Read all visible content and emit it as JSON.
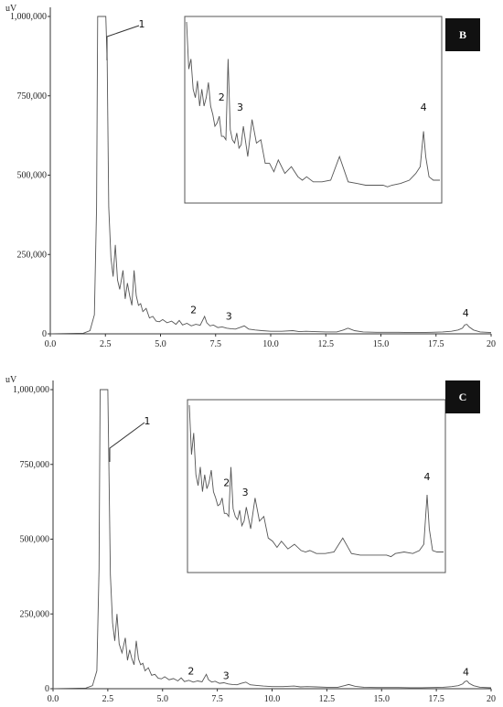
{
  "chart_data": [
    {
      "type": "line",
      "panel_label": "B",
      "ylabel": "uV",
      "xlim": [
        0,
        20
      ],
      "ylim": [
        0,
        1000000
      ],
      "x_ticks": [
        "0.0",
        "2.5",
        "5.0",
        "7.5",
        "10.0",
        "12.5",
        "15.0",
        "17.5",
        "20"
      ],
      "y_ticks": [
        "1,000,000",
        "750,000",
        "500,000",
        "250,000",
        "0"
      ],
      "y_tick_values": [
        1000000,
        750000,
        500000,
        250000,
        0
      ],
      "x_tick_values": [
        0,
        2.5,
        5,
        7.5,
        10,
        12.5,
        15,
        17.5,
        20
      ],
      "line_color": "#555555",
      "peak_labels": [
        {
          "text": "1",
          "x": 2.55,
          "y": 950000
        },
        {
          "text": "2",
          "x": 6.5,
          "y": 65000
        },
        {
          "text": "3",
          "x": 8.1,
          "y": 45000
        },
        {
          "text": "4",
          "x": 18.85,
          "y": 55000
        }
      ],
      "series": [
        {
          "x": [
            0,
            1.5,
            1.8,
            2.0,
            2.1,
            2.15,
            2.2,
            2.3,
            2.35,
            2.45,
            2.52,
            2.58,
            2.65,
            2.75,
            2.85,
            2.95,
            3.05,
            3.15,
            3.3,
            3.4,
            3.5,
            3.6,
            3.7,
            3.8,
            3.9,
            4.0,
            4.1,
            4.2,
            4.35,
            4.5,
            4.65,
            4.8,
            4.95,
            5.1,
            5.3,
            5.5,
            5.7,
            5.85,
            6.0,
            6.2,
            6.4,
            6.6,
            6.8,
            7.0,
            7.1,
            7.25,
            7.4,
            7.6,
            7.8,
            8.0,
            8.2,
            8.4,
            8.6,
            8.8,
            9.0,
            9.3,
            9.6,
            10.0,
            10.5,
            11.0,
            11.3,
            11.6,
            12.0,
            12.5,
            13.0,
            13.3,
            13.5,
            13.8,
            14.2,
            14.8,
            15.3,
            15.8,
            16.3,
            16.8,
            17.3,
            17.8,
            18.2,
            18.5,
            18.7,
            18.8,
            18.9,
            19.0,
            19.2,
            19.5,
            20.0
          ],
          "y": [
            0,
            2000,
            10000,
            60000,
            400000,
            1000000,
            1000000,
            1000000,
            1000000,
            1000000,
            1000000,
            860000,
            400000,
            240000,
            180000,
            280000,
            170000,
            140000,
            200000,
            110000,
            160000,
            120000,
            90000,
            200000,
            120000,
            90000,
            95000,
            70000,
            80000,
            50000,
            55000,
            40000,
            38000,
            45000,
            35000,
            40000,
            30000,
            42000,
            28000,
            33000,
            25000,
            30000,
            27000,
            55000,
            35000,
            25000,
            28000,
            20000,
            22000,
            18000,
            16000,
            15000,
            20000,
            25000,
            15000,
            12000,
            10000,
            8000,
            8000,
            10000,
            7000,
            8000,
            7000,
            6000,
            6000,
            12000,
            18000,
            10000,
            6000,
            5000,
            5000,
            5000,
            4000,
            4000,
            5000,
            6000,
            8000,
            12000,
            18000,
            28000,
            30000,
            22000,
            12000,
            6000,
            4000
          ]
        }
      ],
      "inset": {
        "x": [
          6.0,
          6.1,
          6.2,
          6.3,
          6.4,
          6.5,
          6.6,
          6.7,
          6.8,
          6.9,
          7.0,
          7.1,
          7.2,
          7.3,
          7.4,
          7.5,
          7.6,
          7.7,
          7.8,
          7.9,
          8.0,
          8.1,
          8.2,
          8.3,
          8.4,
          8.5,
          8.6,
          8.8,
          9.0,
          9.2,
          9.4,
          9.6,
          9.8,
          10.0,
          10.2,
          10.5,
          10.8,
          11.1,
          11.3,
          11.5,
          11.8,
          12.2,
          12.6,
          13.0,
          13.4,
          13.8,
          14.2,
          14.6,
          15.0,
          15.2,
          15.4,
          15.8,
          16.2,
          16.5,
          16.7,
          16.85,
          16.95,
          17.1,
          17.3,
          17.6
        ],
        "y": [
          1.0,
          0.72,
          0.78,
          0.6,
          0.55,
          0.65,
          0.5,
          0.6,
          0.5,
          0.55,
          0.64,
          0.5,
          0.45,
          0.38,
          0.4,
          0.44,
          0.32,
          0.32,
          0.3,
          0.78,
          0.36,
          0.3,
          0.28,
          0.34,
          0.25,
          0.27,
          0.38,
          0.2,
          0.42,
          0.28,
          0.3,
          0.16,
          0.16,
          0.11,
          0.18,
          0.1,
          0.14,
          0.08,
          0.06,
          0.08,
          0.05,
          0.05,
          0.06,
          0.2,
          0.05,
          0.04,
          0.03,
          0.03,
          0.03,
          0.02,
          0.03,
          0.04,
          0.06,
          0.1,
          0.14,
          0.35,
          0.2,
          0.08,
          0.06,
          0.06
        ],
        "peak_labels": [
          {
            "text": "2",
            "x": 7.6,
            "y": 0.5
          },
          {
            "text": "3",
            "x": 8.45,
            "y": 0.44
          },
          {
            "text": "4",
            "x": 16.85,
            "y": 0.44
          }
        ]
      }
    },
    {
      "type": "line",
      "panel_label": "C",
      "ylabel": "uV",
      "xlim": [
        0,
        20
      ],
      "ylim": [
        0,
        1000000
      ],
      "x_ticks": [
        "0.0",
        "2.5",
        "5.0",
        "7.5",
        "10.0",
        "12.5",
        "15.0",
        "17.5",
        "20"
      ],
      "y_ticks": [
        "1,000,000",
        "750,000",
        "500,000",
        "250,000",
        "0"
      ],
      "y_tick_values": [
        1000000,
        750000,
        500000,
        250000,
        0
      ],
      "x_tick_values": [
        0,
        2.5,
        5,
        7.5,
        10,
        12.5,
        15,
        17.5,
        20
      ],
      "line_color": "#555555",
      "peak_labels": [
        {
          "text": "1",
          "x": 2.6,
          "y": 780000
        },
        {
          "text": "2",
          "x": 6.3,
          "y": 48000
        },
        {
          "text": "3",
          "x": 7.9,
          "y": 32000
        },
        {
          "text": "4",
          "x": 18.85,
          "y": 45000
        }
      ],
      "series": [
        {
          "x": [
            0,
            1.5,
            1.8,
            2.0,
            2.1,
            2.15,
            2.2,
            2.3,
            2.35,
            2.45,
            2.5,
            2.55,
            2.62,
            2.72,
            2.82,
            2.92,
            3.02,
            3.15,
            3.3,
            3.4,
            3.5,
            3.6,
            3.7,
            3.8,
            3.9,
            4.0,
            4.1,
            4.2,
            4.35,
            4.5,
            4.65,
            4.8,
            4.95,
            5.1,
            5.3,
            5.5,
            5.7,
            5.85,
            6.0,
            6.2,
            6.4,
            6.6,
            6.8,
            7.0,
            7.1,
            7.25,
            7.4,
            7.6,
            7.8,
            8.0,
            8.2,
            8.4,
            8.6,
            8.8,
            9.0,
            9.3,
            9.6,
            10.0,
            10.5,
            11.0,
            11.3,
            11.6,
            12.0,
            12.5,
            13.0,
            13.3,
            13.5,
            13.8,
            14.2,
            14.8,
            15.3,
            15.8,
            16.3,
            16.8,
            17.3,
            17.8,
            18.2,
            18.5,
            18.7,
            18.8,
            18.9,
            19.0,
            19.2,
            19.5,
            20.0
          ],
          "y": [
            0,
            2000,
            10000,
            60000,
            400000,
            1000000,
            1000000,
            1000000,
            1000000,
            1000000,
            1000000,
            740000,
            380000,
            220000,
            160000,
            250000,
            150000,
            120000,
            170000,
            95000,
            130000,
            100000,
            80000,
            160000,
            100000,
            80000,
            85000,
            60000,
            70000,
            45000,
            48000,
            35000,
            33000,
            40000,
            30000,
            34000,
            26000,
            36000,
            24000,
            28000,
            22000,
            26000,
            23000,
            48000,
            30000,
            22000,
            25000,
            18000,
            20000,
            16000,
            14000,
            13000,
            18000,
            22000,
            13000,
            11000,
            9000,
            7000,
            7000,
            9000,
            6000,
            7000,
            6000,
            5000,
            5000,
            10000,
            14000,
            8000,
            5000,
            4000,
            4000,
            4000,
            3500,
            3500,
            4000,
            5000,
            7000,
            10000,
            16000,
            24000,
            26000,
            18000,
            10000,
            5000,
            3000
          ]
        }
      ],
      "inset": {
        "x": [
          6.0,
          6.1,
          6.2,
          6.3,
          6.4,
          6.5,
          6.6,
          6.7,
          6.8,
          6.9,
          7.0,
          7.1,
          7.2,
          7.3,
          7.4,
          7.5,
          7.6,
          7.7,
          7.8,
          7.9,
          8.0,
          8.1,
          8.2,
          8.3,
          8.4,
          8.5,
          8.6,
          8.8,
          9.0,
          9.2,
          9.4,
          9.6,
          9.8,
          10.0,
          10.2,
          10.5,
          10.8,
          11.1,
          11.3,
          11.5,
          11.8,
          12.2,
          12.6,
          13.0,
          13.4,
          13.8,
          14.2,
          14.6,
          15.0,
          15.2,
          15.4,
          15.8,
          16.2,
          16.5,
          16.7,
          16.85,
          16.95,
          17.1,
          17.3,
          17.6
        ],
        "y": [
          1.0,
          0.68,
          0.82,
          0.55,
          0.48,
          0.6,
          0.44,
          0.55,
          0.46,
          0.5,
          0.58,
          0.44,
          0.4,
          0.35,
          0.36,
          0.4,
          0.3,
          0.3,
          0.28,
          0.6,
          0.33,
          0.28,
          0.26,
          0.32,
          0.22,
          0.25,
          0.34,
          0.2,
          0.4,
          0.25,
          0.28,
          0.14,
          0.12,
          0.08,
          0.12,
          0.07,
          0.1,
          0.06,
          0.05,
          0.06,
          0.04,
          0.04,
          0.05,
          0.14,
          0.04,
          0.03,
          0.03,
          0.03,
          0.03,
          0.02,
          0.04,
          0.05,
          0.04,
          0.06,
          0.1,
          0.42,
          0.2,
          0.06,
          0.05,
          0.05
        ],
        "peak_labels": [
          {
            "text": "2",
            "x": 7.7,
            "y": 0.44
          },
          {
            "text": "3",
            "x": 8.55,
            "y": 0.38
          },
          {
            "text": "4",
            "x": 16.85,
            "y": 0.48
          }
        ]
      }
    }
  ]
}
